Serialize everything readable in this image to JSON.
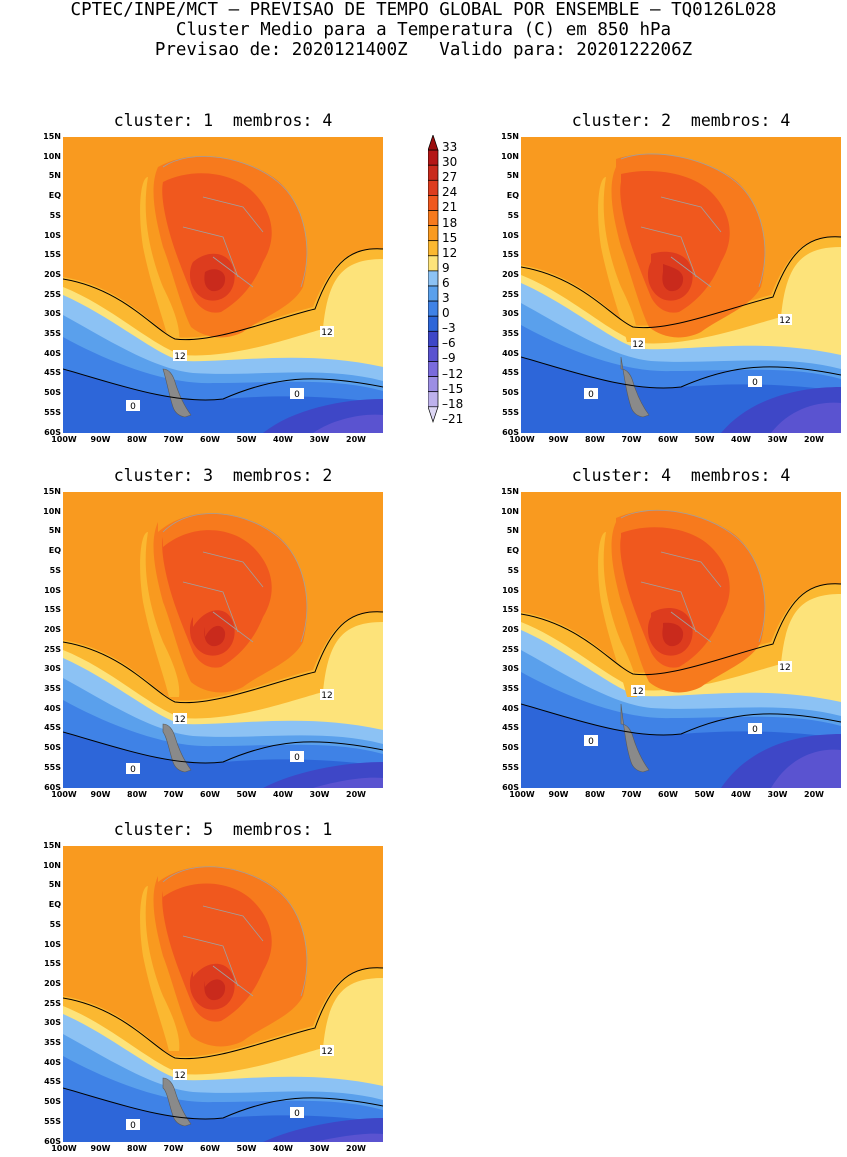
{
  "header": {
    "line1": "CPTEC/INPE/MCT – PREVISAO DE TEMPO GLOBAL POR ENSEMBLE – TQ0126L028",
    "line2": "Cluster Medio para a Temperatura (C) em 850 hPa",
    "line3": "Previsao de: 2020121400Z   Valido para: 2020122206Z"
  },
  "panels": [
    {
      "title": "cluster: 1  membros: 4",
      "c12": [
        "12",
        "12"
      ],
      "c0": [
        "0",
        "0"
      ]
    },
    {
      "title": "cluster: 2  membros: 4",
      "c12": [
        "12",
        "12"
      ],
      "c0": [
        "0",
        "0"
      ]
    },
    {
      "title": "cluster: 3  membros: 2",
      "c12": [
        "12",
        "12"
      ],
      "c0": [
        "0",
        "0"
      ]
    },
    {
      "title": "cluster: 4  membros: 4",
      "c12": [
        "12",
        "12"
      ],
      "c0": [
        "0",
        "0"
      ]
    },
    {
      "title": "cluster: 5  membros: 1",
      "c12": [
        "12",
        "12"
      ],
      "c0": [
        "0",
        "0"
      ]
    }
  ],
  "lat_labels": [
    "15N",
    "10N",
    "5N",
    "EQ",
    "5S",
    "10S",
    "15S",
    "20S",
    "25S",
    "30S",
    "35S",
    "40S",
    "45S",
    "50S",
    "55S",
    "60S"
  ],
  "lon_labels": [
    "100W",
    "90W",
    "80W",
    "70W",
    "60W",
    "50W",
    "40W",
    "30W",
    "20W"
  ],
  "colorbar": {
    "labels": [
      "33",
      "30",
      "27",
      "24",
      "21",
      "18",
      "15",
      "12",
      "9",
      "6",
      "3",
      "0",
      "–3",
      "–6",
      "–9",
      "–12",
      "–15",
      "–18",
      "–21"
    ],
    "colors": {
      "gt33": "#9b0f0f",
      "30": "#b41616",
      "27": "#c92a1c",
      "24": "#dd3c1e",
      "21": "#f0581e",
      "18": "#f77a1d",
      "15": "#f99a1f",
      "12": "#fbb831",
      "9": "#fde37a",
      "6": "#8cc2f4",
      "3": "#5aa0ec",
      "0": "#3f82e6",
      "-3": "#2d66d9",
      "-6": "#3e47c7",
      "-9": "#5a53d0",
      "-12": "#7a6bdc",
      "-15": "#9c8ee4",
      "-18": "#bdb1ec",
      "-21": "#dcd6f4"
    }
  }
}
